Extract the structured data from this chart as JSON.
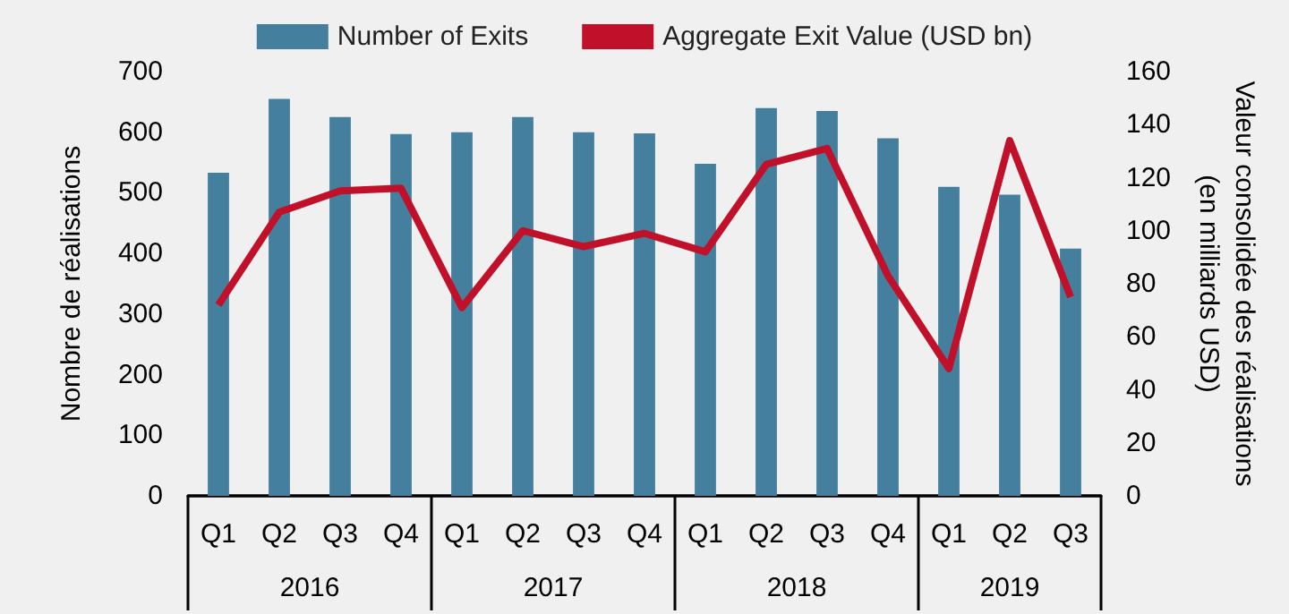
{
  "chart_data": {
    "type": "bar",
    "categories": [
      "Q1",
      "Q2",
      "Q3",
      "Q4",
      "Q1",
      "Q2",
      "Q3",
      "Q4",
      "Q1",
      "Q2",
      "Q3",
      "Q4",
      "Q1",
      "Q2",
      "Q3"
    ],
    "annotations": [
      "2016",
      "2017",
      "2018",
      "2019"
    ],
    "ylabel": "Nombre de réalisations",
    "y2label": "Valeur consolidée des réalisations\n(en milliards USD)",
    "ylim": [
      0,
      700
    ],
    "yticks": [
      0,
      100,
      200,
      300,
      400,
      500,
      600,
      700
    ],
    "y2lim": [
      0,
      160
    ],
    "y2ticks": [
      0,
      20,
      40,
      60,
      80,
      100,
      120,
      140,
      160
    ],
    "grid": false,
    "legend": "top",
    "series": [
      {
        "name": "Number of Exits",
        "color": "#44809e",
        "values": [
          533,
          655,
          625,
          597,
          600,
          625,
          600,
          598,
          548,
          640,
          635,
          590,
          510,
          497,
          408
        ]
      },
      {
        "name": "Aggregate Exit Value (USD bn)",
        "type": "line",
        "axis": "y2",
        "color": "#c0102a",
        "marker": "none",
        "line_style": "solid",
        "values": [
          72,
          107,
          115,
          116,
          71,
          100,
          94,
          99,
          92,
          125,
          131,
          83,
          48,
          134,
          75
        ]
      }
    ]
  }
}
